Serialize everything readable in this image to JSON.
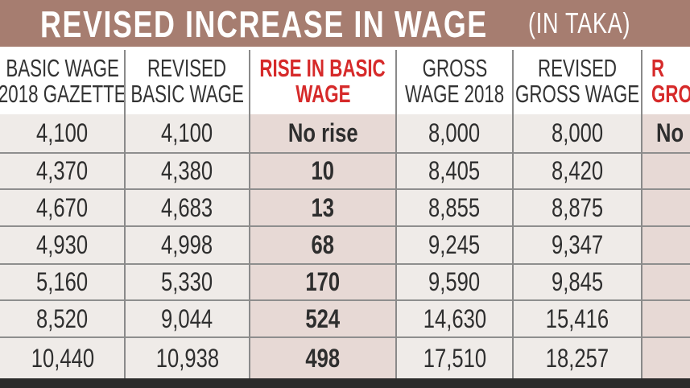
{
  "title": "REVISED INCREASE IN WAGE",
  "unit": "(IN TAKA)",
  "colors": {
    "title_bg": "#a67d70",
    "highlight_text": "#d62a2a",
    "cell_bg": "#efebe8",
    "highlight_bg": "#e7d9d5"
  },
  "chart_data": {
    "type": "table",
    "columns": [
      {
        "lines": [
          "BASIC WAGE",
          "2018 GAZETTE"
        ],
        "highlight": false
      },
      {
        "lines": [
          "REVISED",
          "BASIC WAGE"
        ],
        "highlight": false
      },
      {
        "lines": [
          "RISE IN BASIC",
          "WAGE"
        ],
        "highlight": true
      },
      {
        "lines": [
          "GROSS",
          "WAGE 2018"
        ],
        "highlight": false
      },
      {
        "lines": [
          "REVISED",
          "GROSS WAGE"
        ],
        "highlight": false
      },
      {
        "lines": [
          "R",
          "GRO"
        ],
        "highlight": true
      }
    ],
    "rows": [
      [
        "4,100",
        "4,100",
        "No rise",
        "8,000",
        "8,000",
        "No"
      ],
      [
        "4,370",
        "4,380",
        "10",
        "8,405",
        "8,420",
        ""
      ],
      [
        "4,670",
        "4,683",
        "13",
        "8,855",
        "8,875",
        ""
      ],
      [
        "4,930",
        "4,998",
        "68",
        "9,245",
        "9,347",
        ""
      ],
      [
        "5,160",
        "5,330",
        "170",
        "9,590",
        "9,845",
        ""
      ],
      [
        "8,520",
        "9,044",
        "524",
        "14,630",
        "15,416",
        ""
      ],
      [
        "10,440",
        "10,938",
        "498",
        "17,510",
        "18,257",
        ""
      ]
    ]
  }
}
